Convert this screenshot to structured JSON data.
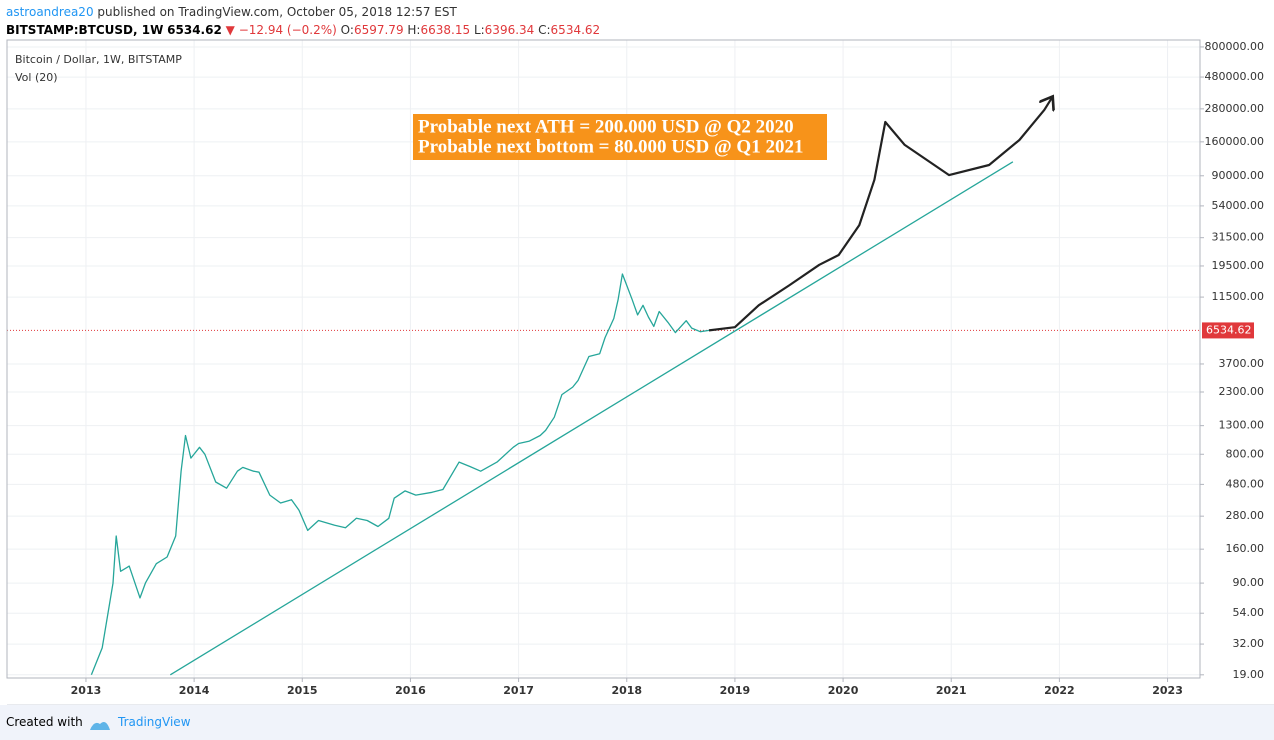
{
  "header": {
    "author": "astroandrea20",
    "published": "published on TradingView.com, October 05, 2018 12:57 EST",
    "symbol": "BITSTAMP:BTCUSD, 1W",
    "price": "6534.62",
    "arrow": "▼",
    "change": "−12.94 (−0.2%)",
    "ohlc": [
      {
        "label": "O:",
        "value": "6597.79"
      },
      {
        "label": "H:",
        "value": "6638.15"
      },
      {
        "label": "L:",
        "value": "6396.34"
      },
      {
        "label": "C:",
        "value": "6534.62"
      }
    ]
  },
  "chart_data": {
    "type": "line",
    "indicator": "Vol (20)",
    "annotation": [
      "Probable next ATH = 200.000 USD @ Q2 2020",
      "Probable next bottom = 80.000 USD @ Q1 2021"
    ],
    "log_scale": true,
    "grid": true,
    "current_price": 6534.62,
    "xlim": [
      2012.27,
      2023.3
    ],
    "xticks": [
      2013,
      2014,
      2015,
      2016,
      2017,
      2018,
      2019,
      2020,
      2021,
      2022,
      2023
    ],
    "ylim": [
      18,
      900000
    ],
    "yticks": [
      {
        "value": 19,
        "label": "19.00"
      },
      {
        "value": 32,
        "label": "32.00"
      },
      {
        "value": 54,
        "label": "54.00"
      },
      {
        "value": 90,
        "label": "90.00"
      },
      {
        "value": 160,
        "label": "160.00"
      },
      {
        "value": 280,
        "label": "280.00"
      },
      {
        "value": 480,
        "label": "480.00"
      },
      {
        "value": 800,
        "label": "800.00"
      },
      {
        "value": 1300,
        "label": "1300.00"
      },
      {
        "value": 2300,
        "label": "2300.00"
      },
      {
        "value": 3700,
        "label": "3700.00"
      },
      {
        "value": 11500,
        "label": "11500.00"
      },
      {
        "value": 19500,
        "label": "19500.00"
      },
      {
        "value": 31500,
        "label": "31500.00"
      },
      {
        "value": 54000,
        "label": "54000.00"
      },
      {
        "value": 90000,
        "label": "90000.00"
      },
      {
        "value": 160000,
        "label": "160000.00"
      },
      {
        "value": 280000,
        "label": "280000.00"
      },
      {
        "value": 480000,
        "label": "480000.00"
      },
      {
        "value": 800000,
        "label": "800000.00"
      }
    ],
    "series": [
      {
        "name": "Bitcoin / Dollar, 1W, BITSTAMP",
        "color": "#26a69a",
        "x": [
          2013.05,
          2013.15,
          2013.25,
          2013.28,
          2013.32,
          2013.4,
          2013.5,
          2013.55,
          2013.65,
          2013.75,
          2013.83,
          2013.88,
          2013.92,
          2013.97,
          2014.05,
          2014.1,
          2014.2,
          2014.3,
          2014.4,
          2014.45,
          2014.55,
          2014.6,
          2014.7,
          2014.8,
          2014.9,
          2014.97,
          2015.05,
          2015.15,
          2015.3,
          2015.4,
          2015.5,
          2015.6,
          2015.7,
          2015.8,
          2015.85,
          2015.95,
          2016.05,
          2016.2,
          2016.3,
          2016.45,
          2016.55,
          2016.65,
          2016.8,
          2016.95,
          2017.0,
          2017.1,
          2017.2,
          2017.25,
          2017.33,
          2017.4,
          2017.5,
          2017.55,
          2017.65,
          2017.75,
          2017.8,
          2017.88,
          2017.92,
          2017.96,
          2018.0,
          2018.05,
          2018.1,
          2018.15,
          2018.2,
          2018.25,
          2018.3,
          2018.38,
          2018.45,
          2018.55,
          2018.6,
          2018.68,
          2018.76
        ],
        "values": [
          19,
          30,
          90,
          200,
          110,
          120,
          70,
          90,
          125,
          140,
          200,
          600,
          1100,
          750,
          900,
          800,
          500,
          450,
          600,
          640,
          600,
          590,
          400,
          350,
          370,
          310,
          220,
          260,
          240,
          230,
          270,
          260,
          235,
          270,
          380,
          430,
          400,
          420,
          440,
          700,
          650,
          600,
          700,
          900,
          960,
          1000,
          1100,
          1200,
          1500,
          2200,
          2500,
          2800,
          4200,
          4400,
          5800,
          8000,
          11000,
          17000,
          14000,
          11000,
          8500,
          10000,
          8200,
          7000,
          9000,
          7500,
          6300,
          7700,
          6800,
          6400,
          6534.62
        ]
      },
      {
        "color": "#222222",
        "x": [
          2018.76,
          2019.0,
          2019.22,
          2019.5,
          2019.78,
          2019.96,
          2020.15,
          2020.29,
          2020.39,
          2020.57,
          2020.98,
          2021.35,
          2021.63,
          2021.86,
          2021.93
        ],
        "values": [
          6534.62,
          6900,
          10000,
          14000,
          19900,
          23500,
          39000,
          84000,
          224000,
          152000,
          91000,
          108000,
          165000,
          275000,
          337000
        ]
      },
      {
        "color": "#26a69a",
        "x": [
          2013.78,
          2021.57
        ],
        "values": [
          19,
          114000
        ]
      }
    ]
  },
  "footer": {
    "created": "Created with",
    "brand": "TradingView"
  }
}
